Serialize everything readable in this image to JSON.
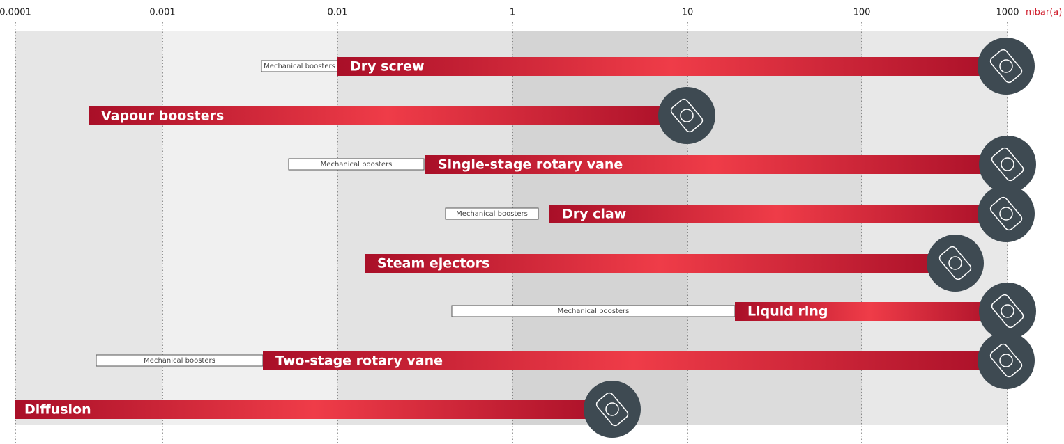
{
  "axis": {
    "ticks": [
      "0.0001",
      "0.001",
      "0.01",
      "1",
      "10",
      "100",
      "1000"
    ],
    "unit": "mbar(a)"
  },
  "pumps": [
    {
      "name": "Dry screw",
      "booster": "Mechanical boosters"
    },
    {
      "name": "Vapour boosters"
    },
    {
      "name": "Single-stage rotary vane",
      "booster": "Mechanical boosters"
    },
    {
      "name": "Dry claw",
      "booster": "Mechanical boosters"
    },
    {
      "name": "Steam ejectors"
    },
    {
      "name": "Liquid ring",
      "booster": "Mechanical boosters"
    },
    {
      "name": "Two-stage rotary vane",
      "booster": "Mechanical boosters"
    },
    {
      "name": "Diffusion"
    }
  ]
}
